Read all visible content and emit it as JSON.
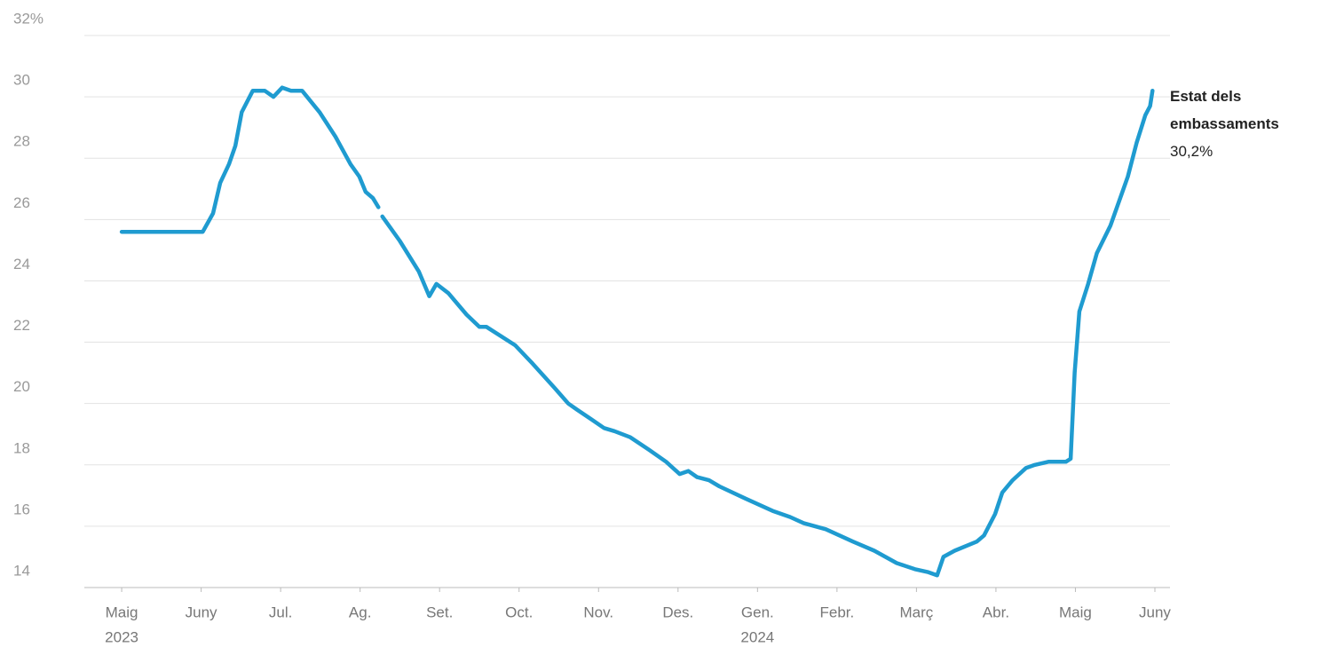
{
  "chart_data": {
    "type": "line",
    "series": [
      {
        "name": "Estat dels embassaments",
        "color": "#1f9bd0",
        "x": [
          0,
          1.02,
          1.15,
          1.24,
          1.35,
          1.43,
          1.51,
          1.65,
          1.8,
          1.91,
          2.02,
          2.13,
          2.27,
          2.49,
          2.69,
          2.88,
          2.99,
          3.07,
          3.16,
          3.23,
          null,
          3.28,
          3.5,
          3.74,
          3.87,
          3.96,
          4.11,
          4.34,
          4.5,
          4.59,
          4.95,
          5.17,
          5.45,
          5.62,
          5.73,
          5.9,
          6.07,
          6.2,
          6.4,
          6.63,
          6.85,
          7.02,
          7.13,
          7.24,
          7.39,
          7.52,
          7.85,
          8.19,
          8.41,
          8.58,
          8.86,
          9.2,
          9.47,
          9.75,
          9.98,
          10.15,
          10.26,
          10.34,
          10.48,
          10.76,
          10.85,
          10.99,
          11.08,
          11.21,
          11.38,
          11.49,
          11.66,
          11.88,
          11.94,
          11.99,
          12.05,
          12.16,
          12.27,
          12.44,
          12.66,
          12.77,
          12.88,
          12.94,
          12.97
        ],
        "values": [
          25.6,
          25.6,
          26.2,
          27.2,
          27.8,
          28.4,
          29.5,
          30.2,
          30.2,
          30.0,
          30.3,
          30.2,
          30.2,
          29.5,
          28.7,
          27.8,
          27.4,
          26.9,
          26.7,
          26.4,
          null,
          26.1,
          25.3,
          24.3,
          23.5,
          23.9,
          23.6,
          22.9,
          22.5,
          22.5,
          21.9,
          21.3,
          20.5,
          20.0,
          19.8,
          19.5,
          19.2,
          19.1,
          18.9,
          18.5,
          18.1,
          17.7,
          17.8,
          17.6,
          17.5,
          17.3,
          16.9,
          16.5,
          16.3,
          16.1,
          15.9,
          15.5,
          15.2,
          14.8,
          14.6,
          14.5,
          14.4,
          15.0,
          15.2,
          15.5,
          15.7,
          16.4,
          17.1,
          17.5,
          17.9,
          18.0,
          18.1,
          18.1,
          18.2,
          21.0,
          23.0,
          23.9,
          24.9,
          25.8,
          27.4,
          28.5,
          29.4,
          29.7,
          30.2
        ]
      }
    ],
    "end_label": "30,2%",
    "xlim": [
      -0.47,
      13.19
    ],
    "xticks": [
      {
        "value": 0,
        "label": "Maig"
      },
      {
        "value": 1,
        "label": "Juny"
      },
      {
        "value": 2,
        "label": "Jul."
      },
      {
        "value": 3,
        "label": "Ag."
      },
      {
        "value": 4,
        "label": "Set."
      },
      {
        "value": 5,
        "label": "Oct."
      },
      {
        "value": 6,
        "label": "Nov."
      },
      {
        "value": 7,
        "label": "Des."
      },
      {
        "value": 8,
        "label": "Gen."
      },
      {
        "value": 9,
        "label": "Febr."
      },
      {
        "value": 10,
        "label": "Març"
      },
      {
        "value": 11,
        "label": "Abr."
      },
      {
        "value": 12,
        "label": "Maig"
      },
      {
        "value": 13,
        "label": "Juny"
      }
    ],
    "year_labels": [
      {
        "value": 0,
        "label": "2023"
      },
      {
        "value": 8,
        "label": "2024"
      }
    ],
    "ylim": [
      14,
      32
    ],
    "yticks": [
      14,
      16,
      18,
      20,
      22,
      24,
      26,
      28,
      30,
      {
        "value": 32,
        "label": "32%"
      }
    ],
    "grid": true
  }
}
